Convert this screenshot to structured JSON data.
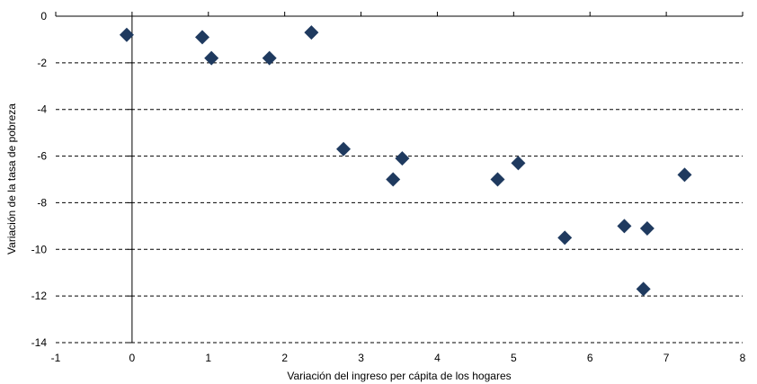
{
  "chart_data": {
    "type": "scatter",
    "xlabel": "Variación del ingreso per cápita de los hogares",
    "ylabel": "Variación de la tasa de pobreza",
    "xlim": [
      -1,
      8
    ],
    "ylim": [
      -14,
      0
    ],
    "x_ticks": [
      -1,
      0,
      1,
      2,
      3,
      4,
      5,
      6,
      7,
      8
    ],
    "y_ticks": [
      0,
      -2,
      -4,
      -6,
      -8,
      -10,
      -12,
      -14
    ],
    "grid": "horizontal dashed",
    "marker": "diamond",
    "marker_color": "#1f3a5f",
    "points": [
      {
        "x": -0.07,
        "y": -0.8
      },
      {
        "x": 0.92,
        "y": -0.9
      },
      {
        "x": 1.04,
        "y": -1.8
      },
      {
        "x": 1.8,
        "y": -1.8
      },
      {
        "x": 2.35,
        "y": -0.7
      },
      {
        "x": 2.77,
        "y": -5.7
      },
      {
        "x": 3.42,
        "y": -7.0
      },
      {
        "x": 3.54,
        "y": -6.1
      },
      {
        "x": 4.79,
        "y": -7.0
      },
      {
        "x": 5.06,
        "y": -6.3
      },
      {
        "x": 5.67,
        "y": -9.5
      },
      {
        "x": 6.45,
        "y": -9.0
      },
      {
        "x": 6.7,
        "y": -11.7
      },
      {
        "x": 6.75,
        "y": -9.1
      },
      {
        "x": 7.24,
        "y": -6.8
      }
    ]
  }
}
